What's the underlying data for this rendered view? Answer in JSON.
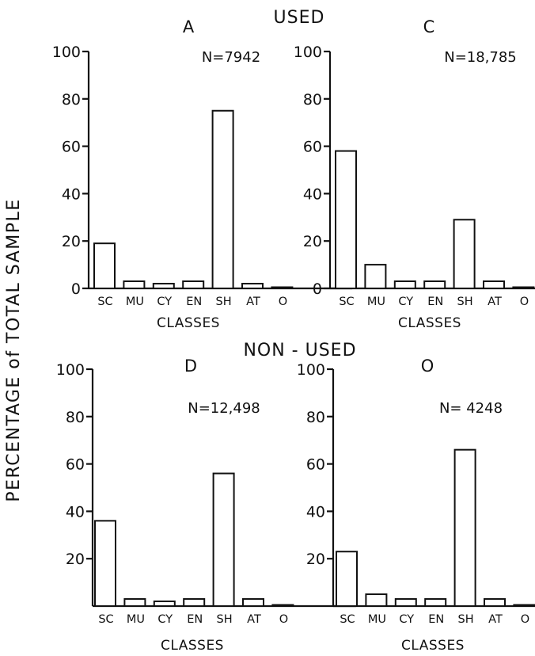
{
  "figure": {
    "y_title": "PERCENTAGE of TOTAL SAMPLE",
    "groups": [
      "USED",
      "NON - USED"
    ]
  },
  "chart_data": [
    {
      "type": "bar",
      "title": "A",
      "annotation": "N=7942",
      "group": "USED",
      "categories": [
        "SC",
        "MU",
        "CY",
        "EN",
        "SH",
        "AT",
        "O"
      ],
      "values": [
        19,
        3,
        2,
        3,
        75,
        2,
        0.5
      ],
      "xlabel": "CLASSES",
      "ylabel": "PERCENTAGE of TOTAL SAMPLE",
      "ylim": [
        0,
        100
      ],
      "yticks": [
        0,
        20,
        40,
        60,
        80,
        100
      ],
      "ytick_labels": [
        "0",
        "20",
        "40",
        "60",
        "80",
        "100"
      ]
    },
    {
      "type": "bar",
      "title": "C",
      "annotation": "N=18,785",
      "group": "USED",
      "categories": [
        "SC",
        "MU",
        "CY",
        "EN",
        "SH",
        "AT",
        "O"
      ],
      "values": [
        58,
        10,
        3,
        3,
        29,
        3,
        0.5
      ],
      "xlabel": "CLASSES",
      "ylabel": "PERCENTAGE of TOTAL SAMPLE",
      "ylim": [
        0,
        100
      ],
      "yticks": [
        0,
        20,
        40,
        60,
        80,
        100
      ],
      "ytick_labels": [
        "0",
        "20",
        "40",
        "60",
        "80",
        "100"
      ]
    },
    {
      "type": "bar",
      "title": "D",
      "annotation": "N=12,498",
      "group": "NON - USED",
      "categories": [
        "SC",
        "MU",
        "CY",
        "EN",
        "SH",
        "AT",
        "O"
      ],
      "values": [
        36,
        3,
        2,
        3,
        56,
        3,
        0.5
      ],
      "xlabel": "CLASSES",
      "ylabel": "PERCENTAGE of TOTAL SAMPLE",
      "ylim": [
        0,
        100
      ],
      "yticks": [
        20,
        40,
        60,
        80,
        100
      ],
      "ytick_labels": [
        "20",
        "40",
        "60",
        "80",
        "100"
      ]
    },
    {
      "type": "bar",
      "title": "O",
      "annotation": "N= 4248",
      "group": "NON - USED",
      "categories": [
        "SC",
        "MU",
        "CY",
        "EN",
        "SH",
        "AT",
        "O"
      ],
      "values": [
        23,
        5,
        3,
        3,
        66,
        3,
        0.5
      ],
      "xlabel": "CLASSES",
      "ylabel": "PERCENTAGE of TOTAL SAMPLE",
      "ylim": [
        0,
        100
      ],
      "yticks": [
        20,
        40,
        60,
        80,
        100
      ],
      "ytick_labels": [
        "20",
        "40",
        "60",
        "80",
        "100"
      ]
    }
  ]
}
